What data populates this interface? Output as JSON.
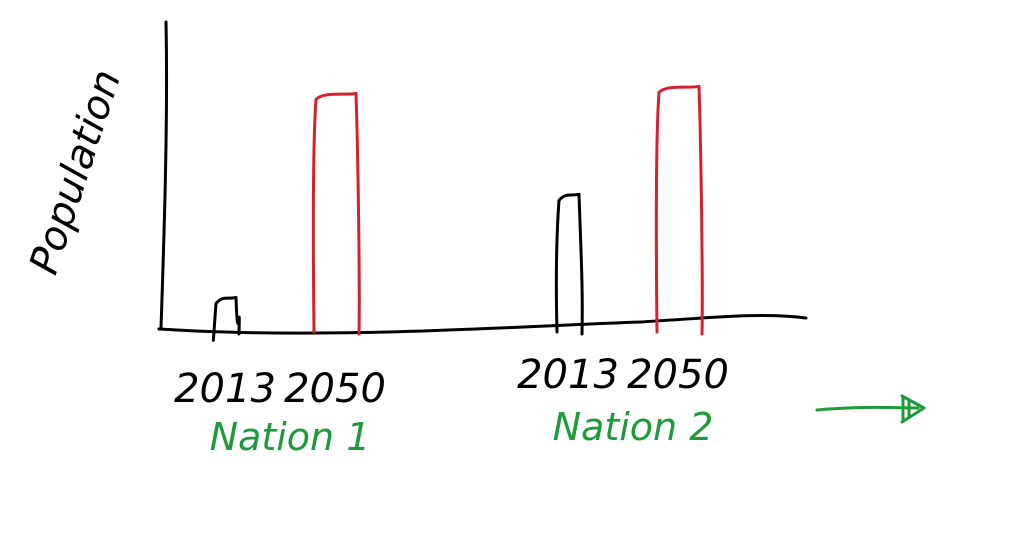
{
  "chart_data": {
    "type": "bar",
    "style": "hand-drawn sketch",
    "ylabel": "Population",
    "xlabel": "",
    "grid": false,
    "legend": "none",
    "y_axis_values_shown": false,
    "groups": [
      {
        "label": "Nation 1",
        "bars": [
          {
            "category": "2013",
            "value": 0.13,
            "color": "#000000"
          },
          {
            "category": "2050",
            "value": 1.0,
            "color": "#d7202b"
          }
        ]
      },
      {
        "label": "Nation 2",
        "bars": [
          {
            "category": "2013",
            "value": 0.57,
            "color": "#000000"
          },
          {
            "category": "2050",
            "value": 1.03,
            "color": "#d7202b"
          }
        ]
      }
    ],
    "tick_labels": [
      "2013",
      "2050",
      "2013",
      "2050"
    ],
    "ylim": [
      0,
      1.1
    ],
    "annotation": "arrow pointing right",
    "colors": {
      "axis": "#000000",
      "bar_2013": "#000000",
      "bar_2050": "#d7202b",
      "group_label": "#1f9a3a",
      "arrow": "#1f9a3a"
    }
  }
}
